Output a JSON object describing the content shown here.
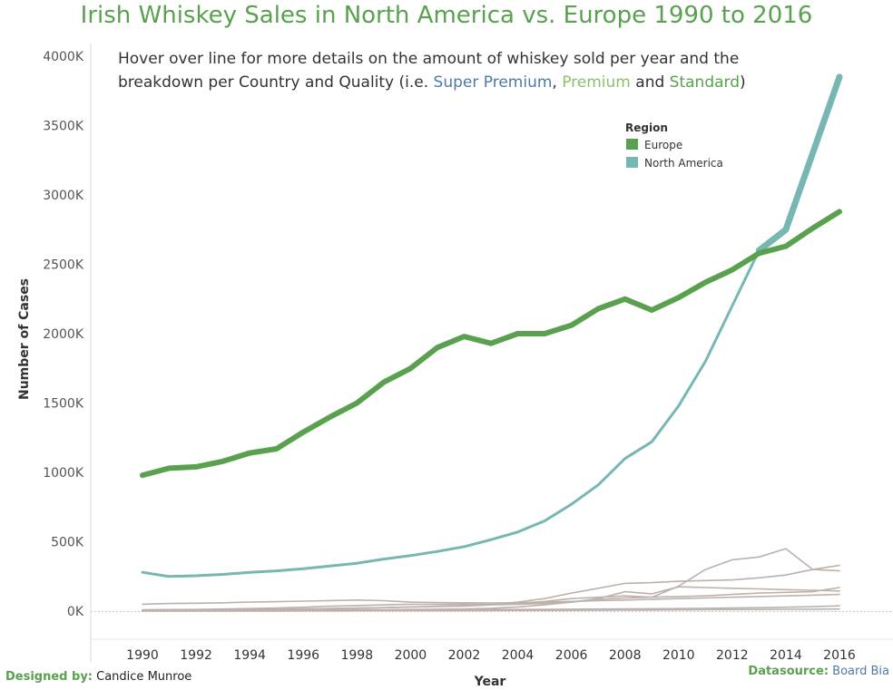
{
  "title": "Irish Whiskey Sales in North America vs. Europe 1990 to 2016",
  "annotation": {
    "line1": "Hover over line for more details on the amount of whiskey sold per year and the",
    "line2_prefix": "breakdown per Country and Quality (i.e. ",
    "super_premium": "Super Premium",
    "comma": ", ",
    "premium": "Premium",
    "and": " and ",
    "standard": "Standard",
    "close": ")",
    "colors": {
      "super_premium": "#4e79a7",
      "premium": "#8cc06e",
      "standard": "#59a14f",
      "text": "#333333"
    }
  },
  "footer": {
    "designed_label": "Designed by:",
    "designer": "Candice Munroe",
    "datasource_label": "Datasource:",
    "datasource": "Board Bia"
  },
  "chart_data": {
    "type": "line",
    "ylabel": "Number of Cases",
    "xlabel": "Year",
    "ylim": [
      0,
      4000000
    ],
    "xlim": [
      1990,
      2016
    ],
    "y_ticks": [
      0,
      500000,
      1000000,
      1500000,
      2000000,
      2500000,
      3000000,
      3500000,
      4000000
    ],
    "y_tick_labels": [
      "0K",
      "500K",
      "1000K",
      "1500K",
      "2000K",
      "2500K",
      "3000K",
      "3500K",
      "4000K"
    ],
    "x_ticks": [
      "1990",
      "1992",
      "1994",
      "1996",
      "1998",
      "2000",
      "2002",
      "2004",
      "2006",
      "2008",
      "2010",
      "2012",
      "2014",
      "2016"
    ],
    "legend": {
      "title": "Region",
      "placement": "top-right",
      "items": [
        {
          "label": "Europe",
          "color": "#59a14f"
        },
        {
          "label": "North America",
          "color": "#76b7b2"
        }
      ]
    },
    "x": [
      1990,
      1991,
      1992,
      1993,
      1994,
      1995,
      1996,
      1997,
      1998,
      1999,
      2000,
      2001,
      2002,
      2003,
      2004,
      2005,
      2006,
      2007,
      2008,
      2009,
      2010,
      2011,
      2012,
      2013,
      2014,
      2015,
      2016
    ],
    "series": [
      {
        "name": "Europe",
        "color": "#59a14f",
        "width": 6,
        "values": [
          980000,
          1030000,
          1040000,
          1080000,
          1140000,
          1170000,
          1290000,
          1400000,
          1500000,
          1650000,
          1750000,
          1900000,
          1980000,
          1930000,
          2000000,
          2000000,
          2060000,
          2180000,
          2250000,
          2170000,
          2260000,
          2370000,
          2460000,
          2580000,
          2630000,
          2760000,
          2880000
        ]
      },
      {
        "name": "North America",
        "color": "#76b7b2",
        "width": 3,
        "values": [
          280000,
          250000,
          255000,
          265000,
          280000,
          290000,
          305000,
          325000,
          345000,
          375000,
          400000,
          430000,
          465000,
          515000,
          570000,
          650000,
          770000,
          910000,
          1100000,
          1220000,
          1480000,
          1800000,
          2200000,
          2600000,
          2750000,
          3300000,
          3850000
        ],
        "emphasis_from": 2013
      },
      {
        "color": "#bcb1ab",
        "width": 1.6,
        "values": [
          50000,
          55000,
          57000,
          60000,
          65000,
          68000,
          72000,
          76000,
          80000,
          75000,
          65000,
          62000,
          60000,
          58000,
          60000,
          65000,
          70000,
          75000,
          80000,
          85000,
          90000,
          95000,
          100000,
          105000,
          110000,
          115000,
          120000
        ]
      },
      {
        "color": "#bcb1ab",
        "width": 1.6,
        "values": [
          10000,
          11000,
          12000,
          15000,
          18000,
          22000,
          28000,
          35000,
          40000,
          45000,
          50000,
          50000,
          50000,
          48000,
          55000,
          70000,
          90000,
          100000,
          110000,
          100000,
          180000,
          300000,
          370000,
          390000,
          450000,
          300000,
          290000
        ]
      },
      {
        "color": "#bcb1ab",
        "width": 1.6,
        "values": [
          5000,
          6000,
          7000,
          8000,
          10000,
          12000,
          15000,
          18000,
          20000,
          25000,
          30000,
          33000,
          36000,
          45000,
          65000,
          90000,
          130000,
          165000,
          200000,
          205000,
          215000,
          220000,
          225000,
          240000,
          260000,
          300000,
          330000
        ]
      },
      {
        "color": "#bcb1ab",
        "width": 1.6,
        "values": [
          8000,
          9000,
          9000,
          10000,
          12000,
          14000,
          16000,
          18000,
          22000,
          25000,
          30000,
          35000,
          40000,
          45000,
          50000,
          55000,
          65000,
          90000,
          140000,
          125000,
          175000,
          170000,
          165000,
          160000,
          155000,
          150000,
          145000
        ]
      },
      {
        "color": "#bcb1ab",
        "width": 1.6,
        "values": [
          3000,
          3000,
          3500,
          4000,
          5000,
          6000,
          7000,
          8000,
          9000,
          10000,
          12000,
          14000,
          16000,
          20000,
          30000,
          45000,
          65000,
          85000,
          95000,
          100000,
          105000,
          110000,
          120000,
          130000,
          135000,
          140000,
          170000
        ]
      },
      {
        "color": "#bcb1ab",
        "width": 1.6,
        "values": [
          2000,
          2000,
          2000,
          2500,
          3000,
          3500,
          4000,
          5000,
          6000,
          7000,
          8000,
          9000,
          10000,
          11000,
          12000,
          13000,
          14000,
          15000,
          16000,
          17000,
          18000,
          20000,
          22000,
          25000,
          28000,
          32000,
          38000
        ]
      },
      {
        "color": "#bcb1ab",
        "width": 1.6,
        "values": [
          1000,
          1000,
          1000,
          1000,
          1500,
          1500,
          2000,
          2000,
          2500,
          3000,
          3000,
          3500,
          4000,
          4500,
          5000,
          5500,
          6000,
          7000,
          8000,
          8000,
          9000,
          10000,
          11000,
          12000,
          13000,
          14000,
          15000
        ]
      }
    ]
  }
}
